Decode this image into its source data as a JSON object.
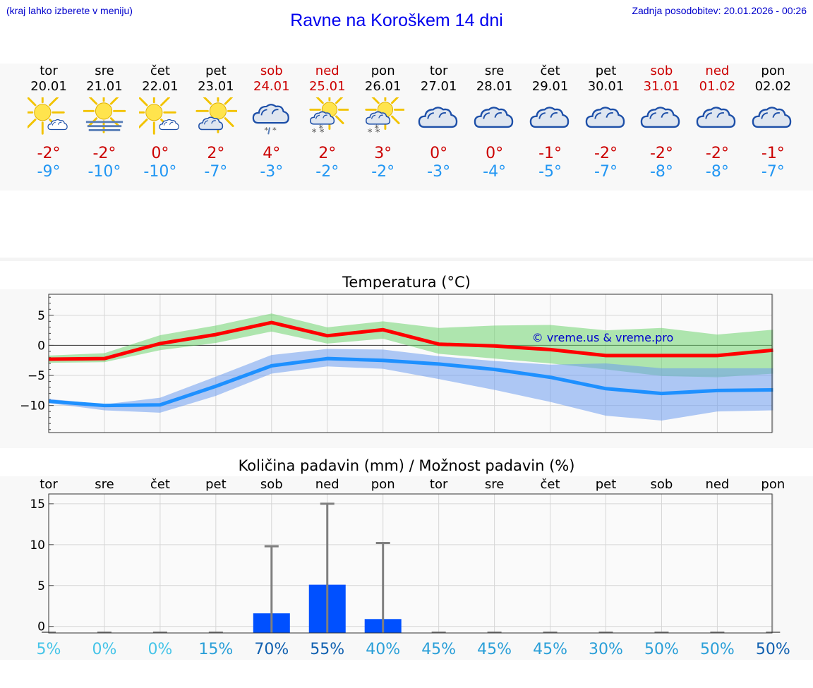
{
  "header": {
    "hint": "(kraj lahko izberete v meniju)",
    "title": "Ravne na Koroškem 14 dni",
    "updated": "Zadnja posodobitev: 20.01.2026 - 00:26"
  },
  "days": [
    {
      "name": "tor",
      "date": "20.01",
      "icon": "partly-cloudy-icon",
      "max": "-2°",
      "min": "-9°",
      "weekend": false
    },
    {
      "name": "sre",
      "date": "21.01",
      "icon": "sun-fog-icon",
      "max": "-2°",
      "min": "-10°",
      "weekend": false
    },
    {
      "name": "čet",
      "date": "22.01",
      "icon": "partly-cloudy-icon",
      "max": "0°",
      "min": "-10°",
      "weekend": false
    },
    {
      "name": "pet",
      "date": "23.01",
      "icon": "mostly-sunny-cloud-icon",
      "max": "2°",
      "min": "-7°",
      "weekend": false
    },
    {
      "name": "sob",
      "date": "24.01",
      "icon": "cloud-sleet-icon",
      "max": "4°",
      "min": "-3°",
      "weekend": true
    },
    {
      "name": "ned",
      "date": "25.01",
      "icon": "sun-cloud-snow-icon",
      "max": "2°",
      "min": "-2°",
      "weekend": true
    },
    {
      "name": "pon",
      "date": "26.01",
      "icon": "sun-cloud-snow-icon",
      "max": "3°",
      "min": "-2°",
      "weekend": false
    },
    {
      "name": "tor",
      "date": "27.01",
      "icon": "cloudy-icon",
      "max": "0°",
      "min": "-3°",
      "weekend": false
    },
    {
      "name": "sre",
      "date": "28.01",
      "icon": "cloudy-icon",
      "max": "0°",
      "min": "-4°",
      "weekend": false
    },
    {
      "name": "čet",
      "date": "29.01",
      "icon": "cloudy-icon",
      "max": "-1°",
      "min": "-5°",
      "weekend": false
    },
    {
      "name": "pet",
      "date": "30.01",
      "icon": "cloudy-icon",
      "max": "-2°",
      "min": "-7°",
      "weekend": false
    },
    {
      "name": "sob",
      "date": "31.01",
      "icon": "cloudy-icon",
      "max": "-2°",
      "min": "-8°",
      "weekend": true
    },
    {
      "name": "ned",
      "date": "01.02",
      "icon": "cloudy-icon",
      "max": "-2°",
      "min": "-8°",
      "weekend": true
    },
    {
      "name": "pon",
      "date": "02.02",
      "icon": "cloudy-icon",
      "max": "-1°",
      "min": "-7°",
      "weekend": false
    }
  ],
  "chart_data": [
    {
      "type": "line",
      "title": "Temperatura (°C)",
      "watermark": "© vreme.us & vreme.pro",
      "x": [
        0,
        1,
        2,
        3,
        4,
        5,
        6,
        7,
        8,
        9,
        10,
        11,
        12,
        13
      ],
      "ylim": [
        -14.5,
        8.5
      ],
      "yticks": [
        5,
        0,
        -5,
        -10
      ],
      "ytick_labels": [
        "5",
        "0",
        "−5",
        "−10"
      ],
      "series": [
        {
          "name": "max",
          "color": "#ff0000",
          "values": [
            -2.3,
            -2.2,
            0.3,
            1.8,
            3.8,
            1.6,
            2.6,
            0.2,
            -0.1,
            -0.7,
            -1.7,
            -1.7,
            -1.7,
            -0.8
          ],
          "band_low": [
            -2.9,
            -2.8,
            -0.8,
            0.4,
            2.3,
            0.3,
            1.1,
            -1.4,
            -2.2,
            -3.0,
            -4.0,
            -5.1,
            -5.3,
            -4.7
          ],
          "band_high": [
            -1.7,
            -1.3,
            1.7,
            3.3,
            5.3,
            3.0,
            4.0,
            2.9,
            3.3,
            3.4,
            2.5,
            2.9,
            1.8,
            2.6
          ],
          "band_color": "#6fd36f"
        },
        {
          "name": "min",
          "color": "#1e90ff",
          "values": [
            -9.3,
            -10.0,
            -9.9,
            -6.8,
            -3.4,
            -2.2,
            -2.5,
            -3.1,
            -4.0,
            -5.3,
            -7.2,
            -8.0,
            -7.5,
            -7.4
          ],
          "band_low": [
            -9.6,
            -10.8,
            -11.2,
            -8.4,
            -4.7,
            -3.5,
            -3.9,
            -5.6,
            -7.4,
            -9.4,
            -11.7,
            -12.5,
            -11.0,
            -10.8
          ],
          "band_high": [
            -8.9,
            -9.8,
            -8.7,
            -5.2,
            -1.6,
            -0.6,
            -0.7,
            -1.8,
            -2.6,
            -3.2,
            -3.0,
            -3.8,
            -3.8,
            -3.8
          ],
          "band_color": "#6e9cee"
        }
      ]
    },
    {
      "type": "bar",
      "title": "Količina padavin (mm) / Možnost padavin (%)",
      "categories": [
        "tor",
        "sre",
        "čet",
        "pet",
        "sob",
        "ned",
        "pon",
        "tor",
        "sre",
        "čet",
        "pet",
        "sob",
        "ned",
        "pon"
      ],
      "values": [
        0,
        0,
        0,
        0,
        1.6,
        5.1,
        0.9,
        0,
        0,
        0,
        0,
        0,
        0,
        0
      ],
      "error_high": [
        0,
        0,
        0,
        0,
        9.8,
        15.0,
        10.2,
        0,
        0,
        0,
        0,
        0,
        0,
        0
      ],
      "ylim": [
        -0.8,
        16.2
      ],
      "yticks": [
        15,
        10,
        5,
        0
      ],
      "ytick_labels": [
        "15",
        "10",
        "5",
        "0"
      ],
      "probabilities": [
        "5%",
        "0%",
        "0%",
        "15%",
        "70%",
        "55%",
        "40%",
        "45%",
        "45%",
        "45%",
        "30%",
        "50%",
        "50%",
        "50%"
      ],
      "probability_colors": [
        "#45c4e8",
        "#45c4e8",
        "#45c4e8",
        "#2a9fd8",
        "#1060b0",
        "#1060b0",
        "#2a9fd8",
        "#2a9fd8",
        "#2a9fd8",
        "#2a9fd8",
        "#2a9fd8",
        "#2a9fd8",
        "#2a9fd8",
        "#1060b0"
      ],
      "bar_color": "#0050ff"
    }
  ]
}
